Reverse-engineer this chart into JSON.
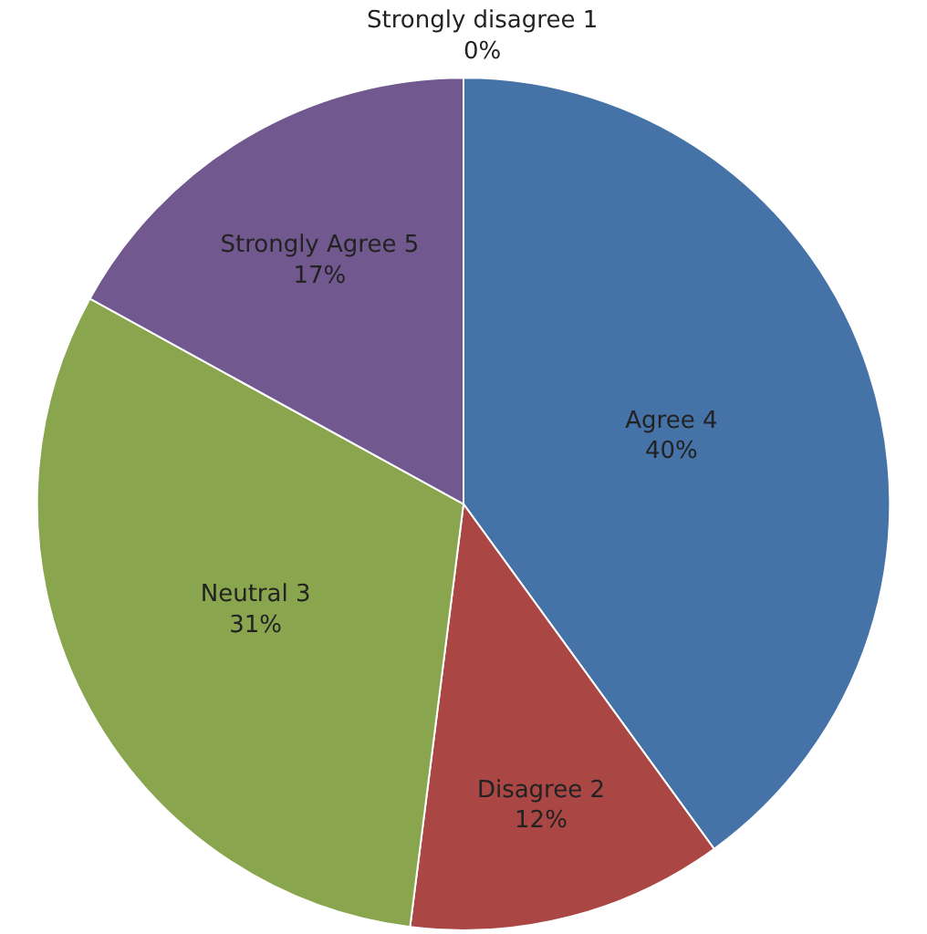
{
  "chart_data": {
    "type": "pie",
    "categories": [
      "Agree 4",
      "Disagree 2",
      "Neutral 3",
      "Strongly Agree 5",
      "Strongly disagree 1"
    ],
    "values": [
      40,
      12,
      31,
      17,
      0
    ],
    "value_labels": [
      "40%",
      "12%",
      "31%",
      "17%",
      "0%"
    ],
    "colors": [
      "#4572a7",
      "#aa4643",
      "#89a54e",
      "#71588f",
      "#4198af"
    ],
    "legend": false
  }
}
